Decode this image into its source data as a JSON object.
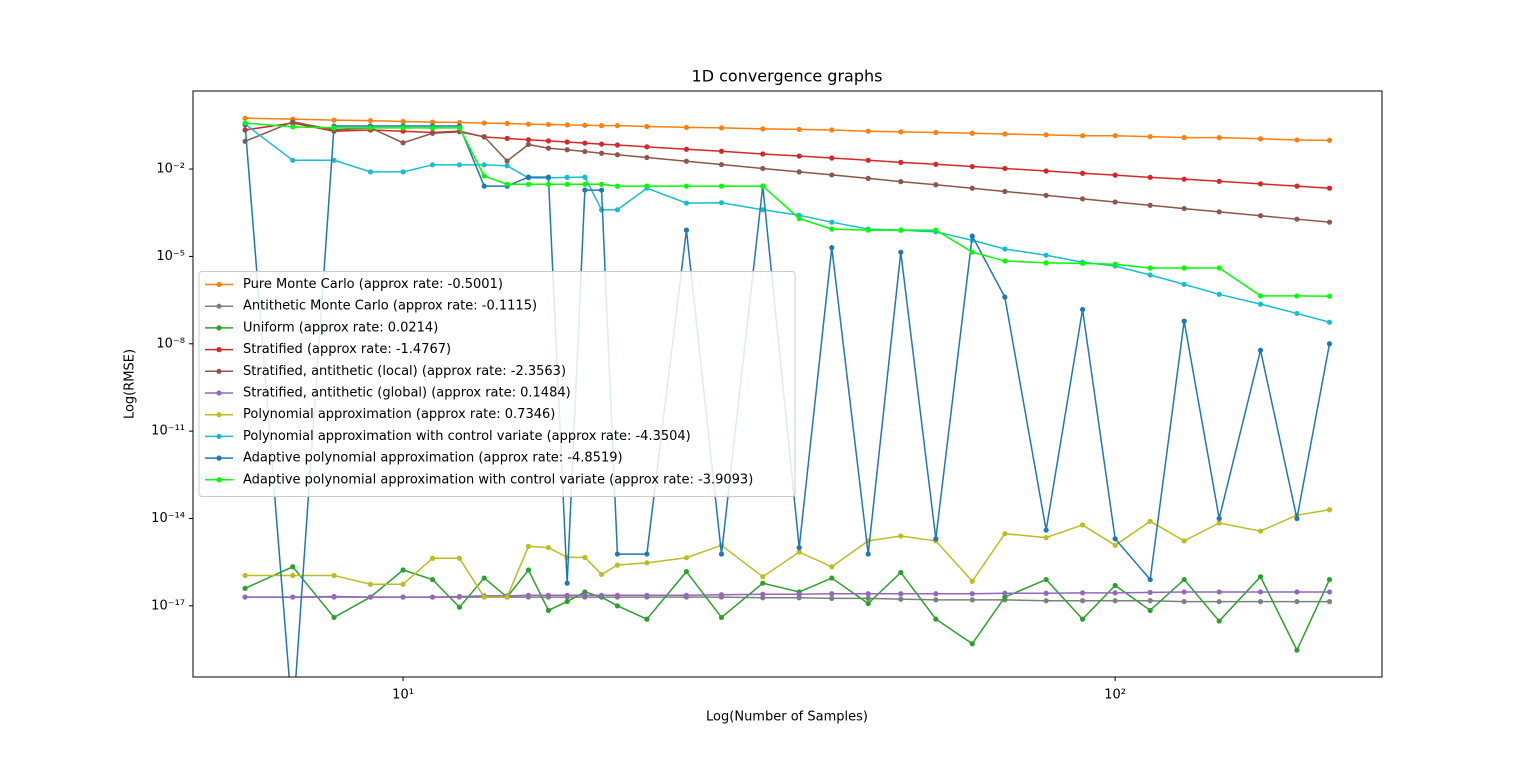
{
  "chart_data": {
    "type": "line",
    "title": "1D convergence graphs",
    "x_label": "Log(Number of Samples)",
    "y_label": "Log(RMSE)",
    "x_scale": "log",
    "y_scale": "log",
    "xlim": [
      5.07,
      237
    ],
    "ylim": [
      3.6e-20,
      4.8
    ],
    "xticks": [
      {
        "value": 10,
        "label": "10¹"
      },
      {
        "value": 100,
        "label": "10²"
      }
    ],
    "yticks": [
      {
        "value": 0.01,
        "label": "10⁻²"
      },
      {
        "value": 1e-05,
        "label": "10⁻⁵"
      },
      {
        "value": 1e-08,
        "label": "10⁻⁸"
      },
      {
        "value": 1e-11,
        "label": "10⁻¹¹"
      },
      {
        "value": 1e-14,
        "label": "10⁻¹⁴"
      },
      {
        "value": 1e-17,
        "label": "10⁻¹⁷"
      }
    ],
    "grid": false,
    "legend": "center left",
    "x": [
      6,
      7,
      8,
      9,
      10,
      11,
      12,
      13,
      14,
      15,
      16,
      17,
      18,
      19,
      20,
      22,
      25,
      28,
      32,
      36,
      40,
      45,
      50,
      56,
      63,
      70,
      80,
      90,
      100,
      112,
      125,
      140,
      160,
      180,
      200
    ],
    "series": [
      {
        "name": "Pure Monte Carlo (approx rate: -0.5001)",
        "color": "#ff7f0e",
        "values": [
          0.56,
          0.52,
          0.48,
          0.46,
          0.43,
          0.41,
          0.4,
          0.38,
          0.37,
          0.35,
          0.34,
          0.33,
          0.32,
          0.31,
          0.31,
          0.29,
          0.27,
          0.26,
          0.24,
          0.23,
          0.22,
          0.2,
          0.19,
          0.18,
          0.17,
          0.16,
          0.15,
          0.14,
          0.14,
          0.13,
          0.12,
          0.12,
          0.11,
          0.1,
          0.097
        ]
      },
      {
        "name": "Antithetic Monte Carlo (approx rate: -0.1115)",
        "color": "#7f7f7f",
        "values": [
          2e-17,
          2e-17,
          2e-17,
          2e-17,
          2e-17,
          2e-17,
          2e-17,
          2e-17,
          2e-17,
          2e-17,
          2e-17,
          2e-17,
          2e-17,
          2e-17,
          2e-17,
          2e-17,
          2e-17,
          2e-17,
          1.9e-17,
          1.9e-17,
          1.8e-17,
          1.8e-17,
          1.7e-17,
          1.6e-17,
          1.6e-17,
          1.6e-17,
          1.5e-17,
          1.5e-17,
          1.5e-17,
          1.5e-17,
          1.4e-17,
          1.4e-17,
          1.4e-17,
          1.4e-17,
          1.4e-17
        ]
      },
      {
        "name": "Uniform (approx rate: 0.0214)",
        "color": "#2ca02c",
        "values": [
          4e-17,
          2.2e-16,
          4e-18,
          2e-17,
          1.7e-16,
          8e-17,
          9e-18,
          9e-17,
          2e-17,
          1.7e-16,
          7e-18,
          1.4e-17,
          3e-17,
          2e-17,
          1e-17,
          3.5e-18,
          1.5e-16,
          4e-18,
          6e-17,
          3e-17,
          9e-17,
          1.2e-17,
          1.4e-16,
          3.5e-18,
          5e-19,
          2e-17,
          8e-17,
          3.5e-18,
          5e-17,
          7e-18,
          8e-17,
          3e-18,
          1e-16,
          3e-19,
          8e-17
        ]
      },
      {
        "name": "Stratified (approx rate: -1.4767)",
        "color": "#d62728",
        "values": [
          0.22,
          0.38,
          0.2,
          0.22,
          0.2,
          0.18,
          0.2,
          0.126,
          0.113,
          0.102,
          0.093,
          0.085,
          0.078,
          0.072,
          0.067,
          0.058,
          0.048,
          0.041,
          0.033,
          0.028,
          0.024,
          0.02,
          0.017,
          0.0146,
          0.0122,
          0.0105,
          0.0086,
          0.0072,
          0.0062,
          0.0052,
          0.0045,
          0.0038,
          0.0031,
          0.0026,
          0.0022
        ]
      },
      {
        "name": "Stratified, antithetic (local) (approx rate: -2.3563)",
        "color": "#8c564b",
        "values": [
          0.09,
          0.42,
          0.22,
          0.26,
          0.08,
          0.17,
          0.19,
          0.13,
          0.019,
          0.07,
          0.052,
          0.046,
          0.04,
          0.035,
          0.031,
          0.025,
          0.0186,
          0.0143,
          0.0105,
          0.008,
          0.0063,
          0.0048,
          0.0037,
          0.0029,
          0.0022,
          0.0017,
          0.00125,
          0.00095,
          0.00074,
          0.00057,
          0.00044,
          0.00034,
          0.00025,
          0.00019,
          0.00015
        ]
      },
      {
        "name": "Stratified, antithetic (global) (approx rate: 0.1484)",
        "color": "#9467bd",
        "values": [
          2e-17,
          2e-17,
          2.1e-17,
          2e-17,
          2e-17,
          2e-17,
          2.1e-17,
          2.2e-17,
          2.2e-17,
          2.3e-17,
          2.3e-17,
          2.3e-17,
          2.3e-17,
          2.3e-17,
          2.3e-17,
          2.3e-17,
          2.3e-17,
          2.4e-17,
          2.5e-17,
          2.5e-17,
          2.6e-17,
          2.6e-17,
          2.6e-17,
          2.6e-17,
          2.6e-17,
          2.7e-17,
          2.7e-17,
          2.8e-17,
          2.8e-17,
          2.9e-17,
          3e-17,
          3e-17,
          3e-17,
          3e-17,
          3e-17
        ]
      },
      {
        "name": "Polynomial approximation (approx rate: 0.7346)",
        "color": "#bcbd22",
        "values": [
          1.1e-16,
          1.1e-16,
          1.1e-16,
          5.5e-17,
          5.5e-17,
          4.3e-16,
          4.3e-16,
          2e-17,
          2e-17,
          1.1e-15,
          1e-15,
          4.6e-16,
          4.6e-16,
          1.2e-16,
          2.5e-16,
          3e-16,
          4.5e-16,
          1.2e-15,
          1e-16,
          7e-16,
          2.2e-16,
          1.7e-15,
          2.5e-15,
          1.7e-15,
          7e-17,
          3e-15,
          2.2e-15,
          6e-15,
          1.2e-15,
          8e-15,
          1.7e-15,
          7e-15,
          3.7e-15,
          1.3e-14,
          2e-14
        ]
      },
      {
        "name": "Polynomial approximation with control variate (approx rate: -4.3504)",
        "color": "#17becf",
        "values": [
          0.35,
          0.02,
          0.02,
          0.008,
          0.008,
          0.014,
          0.014,
          0.014,
          0.013,
          0.005,
          0.005,
          0.0052,
          0.0053,
          0.0004,
          0.0004,
          0.0022,
          0.00068,
          0.0007,
          0.0004,
          0.00026,
          0.00015,
          8.7e-05,
          8e-05,
          7e-05,
          3.6e-05,
          1.8e-05,
          1.1e-05,
          6.3e-06,
          4.7e-06,
          2.3e-06,
          1.1e-06,
          5e-07,
          2.3e-07,
          1.1e-07,
          5.5e-08
        ]
      },
      {
        "name": "Adaptive polynomial approximation (approx rate: -4.8519)",
        "color": "#1f77b4",
        "values": [
          0.33,
          1e-21,
          0.3,
          0.3,
          0.3,
          0.3,
          0.3,
          0.0026,
          0.0026,
          0.0053,
          0.0053,
          6e-17,
          0.0019,
          0.0019,
          6e-16,
          6e-16,
          8e-05,
          6e-16,
          0.0026,
          1e-15,
          2e-05,
          6e-16,
          1.4e-05,
          2e-15,
          5e-05,
          4e-07,
          4e-15,
          1.5e-07,
          2e-15,
          8e-17,
          6e-08,
          1e-14,
          6e-09,
          1e-14,
          1e-08
        ]
      },
      {
        "name": "Adaptive polynomial approximation with control variate (approx rate: -3.9093)",
        "color": "#00ff00",
        "values": [
          0.38,
          0.28,
          0.26,
          0.26,
          0.26,
          0.26,
          0.26,
          0.0058,
          0.003,
          0.003,
          0.003,
          0.003,
          0.003,
          0.003,
          0.0026,
          0.0026,
          0.0026,
          0.0026,
          0.0026,
          0.0002,
          8.7e-05,
          8e-05,
          8e-05,
          8e-05,
          1.4e-05,
          7e-06,
          6e-06,
          5.8e-06,
          5.4e-06,
          4e-06,
          4e-06,
          4e-06,
          4.4e-07,
          4.4e-07,
          4.3e-07
        ]
      }
    ]
  }
}
